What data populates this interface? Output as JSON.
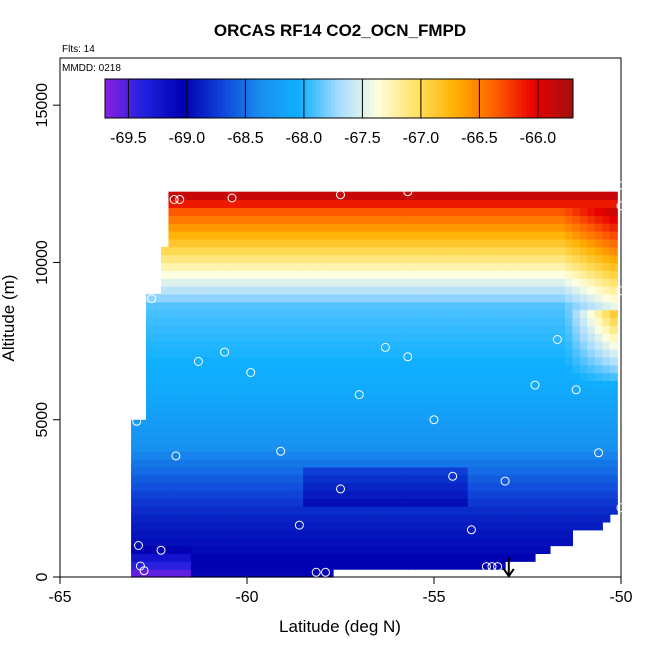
{
  "chart_data": {
    "type": "heatmap",
    "title": "ORCAS RF14 CO2_OCN_FMPD",
    "annotations": {
      "flights": "Flts: 14",
      "date": "MMDD: 0218"
    },
    "xlabel": "Latitude (deg N)",
    "ylabel": "Altitude (m)",
    "xlim": [
      -65,
      -50
    ],
    "ylim": [
      0,
      16500
    ],
    "x_ticks": [
      -65,
      -60,
      -55,
      -50
    ],
    "y_ticks": [
      0,
      5000,
      10000,
      15000
    ],
    "colorbar": {
      "range": [
        -69.7,
        -65.7
      ],
      "ticks": [
        -69.5,
        -69.0,
        -68.5,
        -68.0,
        -67.5,
        -67.0,
        -66.5,
        -66.0
      ],
      "tick_labels": [
        "-69.5",
        "-69.0",
        "-68.5",
        "-68.0",
        "-67.5",
        "-67.0",
        "-66.5",
        "-66.0"
      ],
      "colors": [
        "#8b20e0",
        "#2020e0",
        "#0000b0",
        "#1044d8",
        "#1890f0",
        "#10b0ff",
        "#a8dcff",
        "#ffffe0",
        "#ffe060",
        "#ffb000",
        "#ff6000",
        "#e80000",
        "#a01010"
      ]
    },
    "observations": [
      {
        "lat": -61.8,
        "alt": 12000
      },
      {
        "lat": -61.95,
        "alt": 12000
      },
      {
        "lat": -60.4,
        "alt": 12050
      },
      {
        "lat": -57.5,
        "alt": 12150
      },
      {
        "lat": -55.7,
        "alt": 12250
      },
      {
        "lat": -50.05,
        "alt": 12450
      },
      {
        "lat": -50.0,
        "alt": 11800
      },
      {
        "lat": -50.0,
        "alt": 9100
      },
      {
        "lat": -62.55,
        "alt": 8850
      },
      {
        "lat": -60.6,
        "alt": 7150
      },
      {
        "lat": -61.3,
        "alt": 6850
      },
      {
        "lat": -56.3,
        "alt": 7300
      },
      {
        "lat": -55.7,
        "alt": 7000
      },
      {
        "lat": -51.7,
        "alt": 7550
      },
      {
        "lat": -59.9,
        "alt": 6500
      },
      {
        "lat": -52.3,
        "alt": 6100
      },
      {
        "lat": -57.0,
        "alt": 5800
      },
      {
        "lat": -51.2,
        "alt": 5950
      },
      {
        "lat": -55.0,
        "alt": 5000
      },
      {
        "lat": -62.95,
        "alt": 4950
      },
      {
        "lat": -59.1,
        "alt": 4000
      },
      {
        "lat": -61.9,
        "alt": 3850
      },
      {
        "lat": -50.6,
        "alt": 3950
      },
      {
        "lat": -54.5,
        "alt": 3200
      },
      {
        "lat": -53.1,
        "alt": 3050
      },
      {
        "lat": -57.5,
        "alt": 2800
      },
      {
        "lat": -50.0,
        "alt": 2200
      },
      {
        "lat": -58.6,
        "alt": 1650
      },
      {
        "lat": -54.0,
        "alt": 1500
      },
      {
        "lat": -62.9,
        "alt": 1000
      },
      {
        "lat": -62.3,
        "alt": 850
      },
      {
        "lat": -62.85,
        "alt": 350
      },
      {
        "lat": -62.75,
        "alt": 200
      },
      {
        "lat": -58.15,
        "alt": 150
      },
      {
        "lat": -57.9,
        "alt": 150
      },
      {
        "lat": -53.6,
        "alt": 330
      },
      {
        "lat": -53.45,
        "alt": 330
      },
      {
        "lat": -53.3,
        "alt": 330
      }
    ],
    "marker": {
      "lat": -53.0,
      "alt": 0,
      "kind": "down-arrow"
    }
  }
}
